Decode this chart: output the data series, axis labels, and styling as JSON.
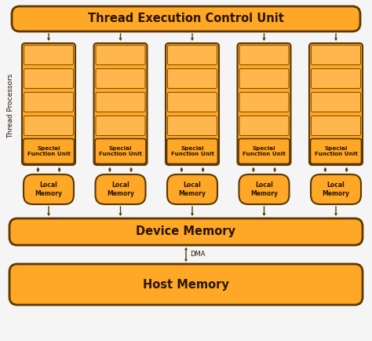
{
  "bg_color": "#f5f5f5",
  "box_fill": "#FFA726",
  "box_fill_light": "#FFB74D",
  "box_edge": "#7a4a00",
  "box_edge_dark": "#5C3800",
  "text_color": "#2a1500",
  "arrow_color": "#5a3800",
  "title": "Thread Execution Control Unit",
  "device_memory": "Device Memory",
  "host_memory": "Host Memory",
  "special_func": "Special\nFunction Unit",
  "local_memory": "Local\nMemory",
  "thread_processors_label": "Thread Processors",
  "dma_label": "DMA",
  "num_processors": 5,
  "fig_width": 4.74,
  "fig_height": 4.34,
  "dpi": 100
}
